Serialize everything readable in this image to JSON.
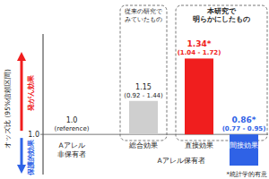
{
  "chart_data": {
    "type": "bar",
    "categories": [
      "Aアレル非保有者",
      "総合効果",
      "直接効果",
      "間接効果"
    ],
    "values": [
      1.0,
      1.15,
      1.34,
      0.86
    ],
    "value_labels": [
      "1.0",
      "1.15",
      "1.34*",
      "0.86*"
    ],
    "interval_labels": [
      "(reference)",
      "(0.92 - 1.44)",
      "(1.04 - 1.72)",
      "(0.77 - 0.95)"
    ],
    "colors": [
      "#999999",
      "#cfcfcf",
      "#f01e1e",
      "#2f62e6"
    ],
    "baseline": 1,
    "ylim": [
      0.82,
      1.45
    ],
    "yticks": [
      {
        "value": 1,
        "label": "1.0"
      }
    ],
    "y_label": "オッズ比 (95%信頼区間)",
    "data_labels": true,
    "grid": false,
    "annotations": {
      "up": {
        "text": "発がん効果",
        "color": "#f01e1e"
      },
      "down": {
        "text": "保護的効果",
        "color": "#2f62e6"
      },
      "groups": [
        {
          "label": [
            "従来の研究で",
            "みていたもの"
          ],
          "categories": [
            1
          ]
        },
        {
          "label": [
            "本研究で",
            "明らかにしたもの"
          ],
          "categories": [
            2,
            3
          ]
        }
      ],
      "carrier_group": {
        "label": "Aアレル保有者",
        "categories": [
          1,
          2,
          3
        ]
      },
      "footnote": "*統計学的有意"
    }
  }
}
